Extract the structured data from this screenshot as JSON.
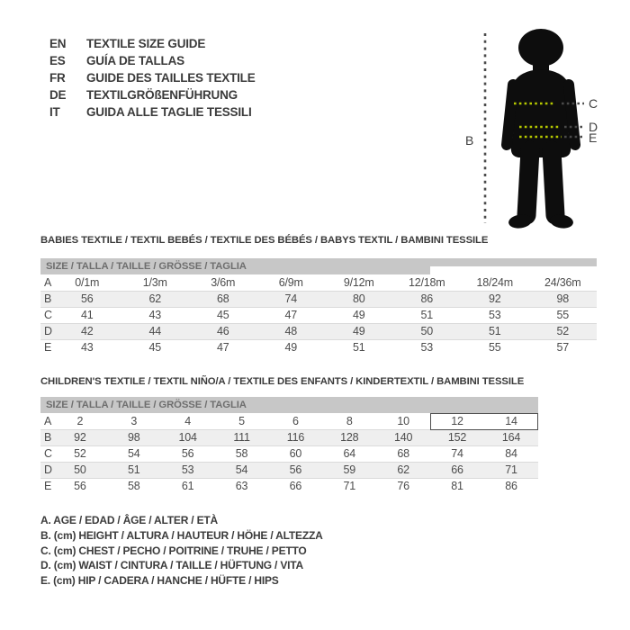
{
  "languages": [
    {
      "code": "EN",
      "title": "TEXTILE SIZE GUIDE"
    },
    {
      "code": "ES",
      "title": "GUÍA DE TALLAS"
    },
    {
      "code": "FR",
      "title": "GUIDE DES TAILLES TEXTILE"
    },
    {
      "code": "DE",
      "title": "TEXTILGRÖßENFÜHRUNG"
    },
    {
      "code": "IT",
      "title": "GUIDA ALLE TAGLIE TESSILI"
    }
  ],
  "figure": {
    "labels": {
      "height": "B",
      "chest": "C",
      "waist": "D",
      "hip": "E"
    },
    "colors": {
      "silhouette": "#0d0d0d",
      "measure_on_body": "#b5c800",
      "measure_off_body": "#4a4a4a",
      "label_text": "#3f3f3f"
    }
  },
  "babies_table": {
    "section_title": "BABIES TEXTILE / TEXTIL BEBÉS / TEXTILE DES BÉBÉS / BABYS TEXTIL / BAMBINI TESSILE",
    "header": "SIZE / TALLA / TAILLE / GRÖSSE / TAGLIA",
    "rows": [
      {
        "label": "A",
        "values": [
          "0/1m",
          "1/3m",
          "3/6m",
          "6/9m",
          "9/12m",
          "12/18m",
          "18/24m",
          "24/36m"
        ]
      },
      {
        "label": "B",
        "values": [
          "56",
          "62",
          "68",
          "74",
          "80",
          "86",
          "92",
          "98"
        ]
      },
      {
        "label": "C",
        "values": [
          "41",
          "43",
          "45",
          "47",
          "49",
          "51",
          "53",
          "55"
        ]
      },
      {
        "label": "D",
        "values": [
          "42",
          "44",
          "46",
          "48",
          "49",
          "50",
          "51",
          "52"
        ]
      },
      {
        "label": "E",
        "values": [
          "43",
          "45",
          "47",
          "49",
          "51",
          "53",
          "55",
          "57"
        ]
      }
    ]
  },
  "children_table": {
    "section_title": "CHILDREN'S TEXTILE / TEXTIL NIÑO/A / TEXTILE DES ENFANTS / KINDERTEXTIL / BAMBINI TESSILE",
    "header": "SIZE / TALLA / TAILLE / GRÖSSE / TAGLIA",
    "highlighted_sizes": [
      "12",
      "14"
    ],
    "rows": [
      {
        "label": "A",
        "values": [
          "2",
          "3",
          "4",
          "5",
          "6",
          "8",
          "10",
          "12",
          "14"
        ]
      },
      {
        "label": "B",
        "values": [
          "92",
          "98",
          "104",
          "111",
          "116",
          "128",
          "140",
          "152",
          "164"
        ]
      },
      {
        "label": "C",
        "values": [
          "52",
          "54",
          "56",
          "58",
          "60",
          "64",
          "68",
          "74",
          "84"
        ]
      },
      {
        "label": "D",
        "values": [
          "50",
          "51",
          "53",
          "54",
          "56",
          "59",
          "62",
          "66",
          "71"
        ]
      },
      {
        "label": "E",
        "values": [
          "56",
          "58",
          "61",
          "63",
          "66",
          "71",
          "76",
          "81",
          "86"
        ]
      }
    ]
  },
  "legend": [
    "A. AGE / EDAD / ÂGE / ALTER / ETÀ",
    "B. (cm) HEIGHT / ALTURA / HAUTEUR / HÖHE / ALTEZZA",
    "C. (cm) CHEST / PECHO / POITRINE / TRUHE / PETTO",
    "D. (cm) WAIST / CINTURA / TAILLE / HÜFTUNG / VITA",
    "E. (cm) HIP / CADERA / HANCHE / HÜFTE / HIPS"
  ],
  "colors": {
    "header_bar_bg": "#c7c7c7",
    "header_bar_text": "#6e6e6e",
    "row_stripe": "#efefef",
    "table_text": "#4c4c4c",
    "body_text": "#3b3b3b"
  }
}
